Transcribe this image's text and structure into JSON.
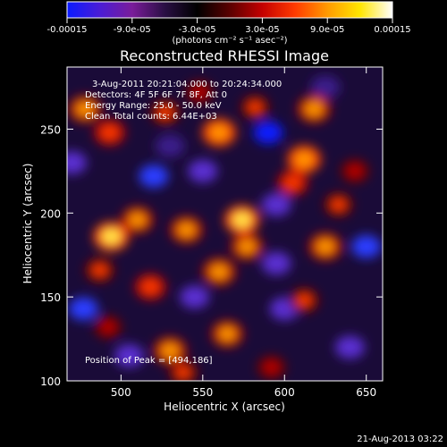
{
  "colorbar": {
    "tick_labels": [
      "-0.00015",
      "-9.0e-05",
      "-3.0e-05",
      "3.0e-05",
      "9.0e-05",
      "0.00015"
    ],
    "units_label": "(photons cm⁻² s⁻¹ asec⁻²)",
    "colors": [
      "#0a1bff",
      "#4a1cd6",
      "#7a1c9a",
      "#2a0f44",
      "#000000",
      "#5a0000",
      "#c40000",
      "#ff3a00",
      "#ff9a00",
      "#ffe600",
      "#ffffff"
    ]
  },
  "chart_data": {
    "type": "heatmap",
    "title": "Reconstructed RHESSI Image",
    "xlabel": "Heliocentric X (arcsec)",
    "ylabel": "Heliocentric Y (arcsec)",
    "xlim": [
      467,
      660
    ],
    "ylim": [
      100,
      287
    ],
    "x_ticks": [
      500,
      550,
      600,
      650
    ],
    "y_ticks": [
      100,
      150,
      200,
      250
    ],
    "info_lines": [
      "3-Aug-2011 20:21:04.000 to 20:24:34.000",
      "Detectors: 4F 5F 6F 7F 8F, Att 0",
      "Energy Range: 25.0 - 50.0 keV",
      "Clean     Total counts: 6.44E+03"
    ],
    "peak_label": "Position of Peak = [494,186]",
    "peak_position": [
      494,
      186
    ],
    "hot_spots": [
      {
        "x": 478,
        "y": 262,
        "v": 0.75
      },
      {
        "x": 493,
        "y": 248,
        "v": 0.65
      },
      {
        "x": 527,
        "y": 260,
        "v": 0.55
      },
      {
        "x": 560,
        "y": 248,
        "v": 0.85
      },
      {
        "x": 582,
        "y": 263,
        "v": 0.5
      },
      {
        "x": 548,
        "y": 272,
        "v": 0.4
      },
      {
        "x": 618,
        "y": 262,
        "v": 0.8
      },
      {
        "x": 612,
        "y": 232,
        "v": 0.85
      },
      {
        "x": 605,
        "y": 218,
        "v": 0.6
      },
      {
        "x": 633,
        "y": 205,
        "v": 0.5
      },
      {
        "x": 494,
        "y": 186,
        "v": 1.0
      },
      {
        "x": 510,
        "y": 196,
        "v": 0.7
      },
      {
        "x": 487,
        "y": 166,
        "v": 0.55
      },
      {
        "x": 540,
        "y": 190,
        "v": 0.75
      },
      {
        "x": 574,
        "y": 196,
        "v": 0.95
      },
      {
        "x": 577,
        "y": 180,
        "v": 0.7
      },
      {
        "x": 560,
        "y": 165,
        "v": 0.8
      },
      {
        "x": 625,
        "y": 180,
        "v": 0.8
      },
      {
        "x": 612,
        "y": 148,
        "v": 0.55
      },
      {
        "x": 518,
        "y": 156,
        "v": 0.65
      },
      {
        "x": 530,
        "y": 118,
        "v": 0.8
      },
      {
        "x": 565,
        "y": 128,
        "v": 0.7
      },
      {
        "x": 538,
        "y": 105,
        "v": 0.5
      },
      {
        "x": 592,
        "y": 108,
        "v": 0.45
      },
      {
        "x": 492,
        "y": 132,
        "v": 0.4
      },
      {
        "x": 643,
        "y": 225,
        "v": 0.45
      }
    ],
    "cold_spots": [
      {
        "x": 590,
        "y": 248,
        "v": -0.8
      },
      {
        "x": 650,
        "y": 180,
        "v": -0.65
      },
      {
        "x": 520,
        "y": 222,
        "v": -0.55
      },
      {
        "x": 595,
        "y": 205,
        "v": -0.45
      },
      {
        "x": 550,
        "y": 225,
        "v": -0.4
      },
      {
        "x": 477,
        "y": 143,
        "v": -0.55
      },
      {
        "x": 505,
        "y": 115,
        "v": -0.5
      },
      {
        "x": 600,
        "y": 143,
        "v": -0.5
      },
      {
        "x": 640,
        "y": 120,
        "v": -0.45
      },
      {
        "x": 545,
        "y": 150,
        "v": -0.35
      },
      {
        "x": 595,
        "y": 170,
        "v": -0.35
      },
      {
        "x": 530,
        "y": 240,
        "v": -0.3
      },
      {
        "x": 470,
        "y": 230,
        "v": -0.35
      },
      {
        "x": 625,
        "y": 275,
        "v": -0.3
      }
    ]
  },
  "footer": {
    "timestamp": "21-Aug-2013 03:22"
  }
}
